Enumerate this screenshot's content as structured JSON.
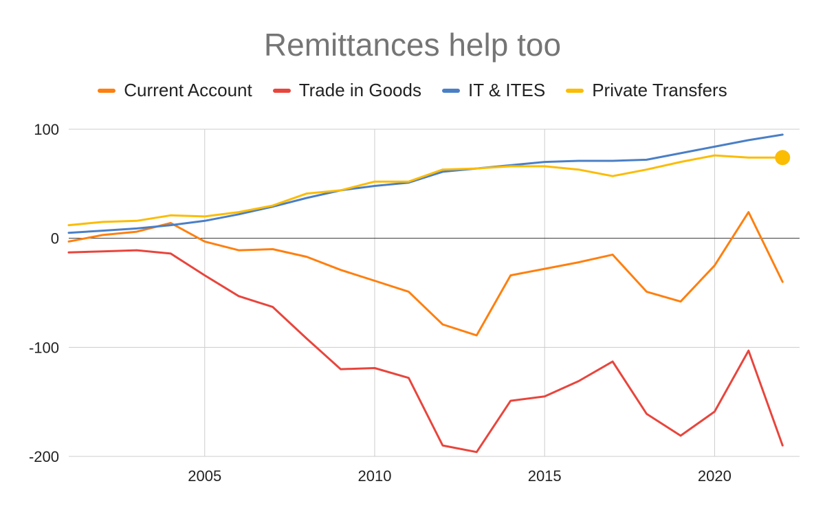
{
  "chart_data": {
    "type": "line",
    "title": "Remittances help too",
    "x": [
      2001,
      2002,
      2003,
      2004,
      2005,
      2006,
      2007,
      2008,
      2009,
      2010,
      2011,
      2012,
      2013,
      2014,
      2015,
      2016,
      2017,
      2018,
      2019,
      2020,
      2021,
      2022
    ],
    "xticks": [
      2005,
      2010,
      2015,
      2020
    ],
    "xlim": [
      2001,
      2022.5
    ],
    "yticks": [
      100,
      0,
      -100,
      -200
    ],
    "ylim": [
      -200,
      100
    ],
    "grid": true,
    "legend_position": "top",
    "series": [
      {
        "name": "Current Account",
        "color": "#FF7F0E",
        "values": [
          -3,
          3,
          6,
          14,
          -3,
          -11,
          -10,
          -17,
          -29,
          -39,
          -49,
          -79,
          -89,
          -34,
          -28,
          -22,
          -15,
          -49,
          -58,
          -25,
          24,
          -40
        ]
      },
      {
        "name": "Trade in Goods",
        "color": "#E8453C",
        "values": [
          -13,
          -12,
          -11,
          -14,
          -34,
          -53,
          -63,
          -92,
          -120,
          -119,
          -128,
          -190,
          -196,
          -149,
          -145,
          -131,
          -113,
          -161,
          -181,
          -159,
          -103,
          -190
        ]
      },
      {
        "name": "IT & ITES",
        "color": "#4A7FC6",
        "values": [
          5,
          7,
          9,
          12,
          16,
          22,
          29,
          37,
          44,
          48,
          51,
          61,
          64,
          67,
          70,
          71,
          71,
          72,
          78,
          84,
          90,
          95
        ]
      },
      {
        "name": "Private Transfers",
        "color": "#FBBC04",
        "values": [
          12,
          15,
          16,
          21,
          20,
          24,
          30,
          41,
          44,
          52,
          52,
          63,
          64,
          66,
          66,
          63,
          57,
          63,
          70,
          76,
          74,
          74
        ],
        "endpoint_marker": true
      }
    ]
  }
}
